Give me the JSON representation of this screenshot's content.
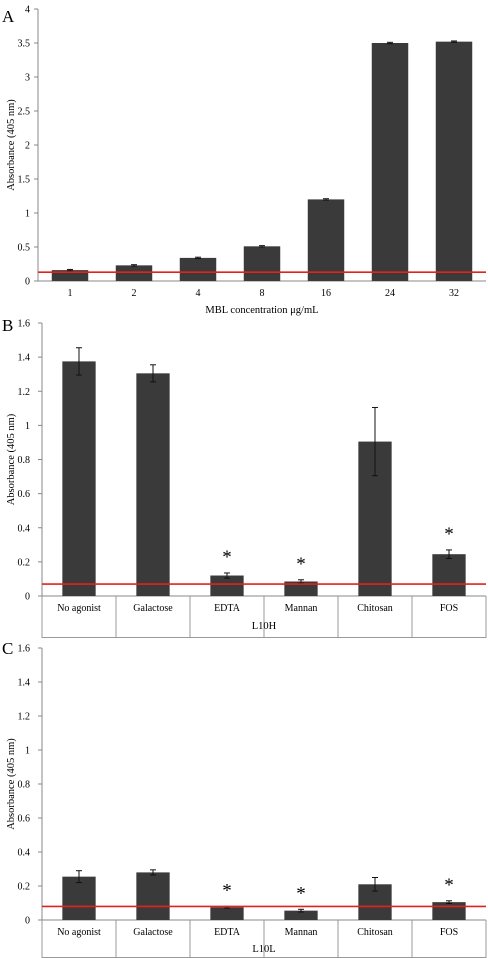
{
  "chart_data": [
    {
      "panel": "A",
      "type": "bar",
      "ylabel": "Absorbance (405 nm)",
      "xlabel": "MBL concentration μg/mL",
      "ylim": [
        0,
        4
      ],
      "yticks": [
        0,
        0.5,
        1,
        1.5,
        2,
        2.5,
        3,
        3.5,
        4
      ],
      "categories": [
        "1",
        "2",
        "4",
        "8",
        "16",
        "24",
        "32"
      ],
      "values": [
        0.16,
        0.23,
        0.34,
        0.51,
        1.2,
        3.5,
        3.52
      ],
      "errors": [
        0.01,
        0.01,
        0.01,
        0.01,
        0.01,
        0.01,
        0.01
      ],
      "significance": [
        "",
        "",
        "",
        "",
        "",
        "",
        ""
      ],
      "baseline": 0.13,
      "baseline_color": "#e2231a",
      "bar_color": "#3a3a3a"
    },
    {
      "panel": "B",
      "type": "bar",
      "ylabel": "Absorbance (405 nm)",
      "xlabel": "L10H",
      "ylim": [
        0,
        1.6
      ],
      "yticks": [
        0,
        0.2,
        0.4,
        0.6,
        0.8,
        1,
        1.2,
        1.4,
        1.6
      ],
      "categories": [
        "No agonist",
        "Galactose",
        "EDTA",
        "Mannan",
        "Chitosan",
        "FOS"
      ],
      "values": [
        1.375,
        1.305,
        0.12,
        0.085,
        0.905,
        0.245
      ],
      "errors": [
        0.08,
        0.05,
        0.015,
        0.01,
        0.2,
        0.025
      ],
      "significance": [
        "",
        "",
        "*",
        "*",
        "",
        "*"
      ],
      "baseline": 0.07,
      "baseline_color": "#e2231a",
      "bar_color": "#3a3a3a"
    },
    {
      "panel": "C",
      "type": "bar",
      "ylabel": "Absorbance (405 nm)",
      "xlabel": "L10L",
      "ylim": [
        0,
        1.6
      ],
      "yticks": [
        0,
        0.2,
        0.4,
        0.6,
        0.8,
        1,
        1.2,
        1.4,
        1.6
      ],
      "categories": [
        "No agonist",
        "Galactose",
        "EDTA",
        "Mannan",
        "Chitosan",
        "FOS"
      ],
      "values": [
        0.255,
        0.28,
        0.075,
        0.055,
        0.21,
        0.105
      ],
      "errors": [
        0.035,
        0.015,
        0.005,
        0.008,
        0.04,
        0.008
      ],
      "significance": [
        "",
        "",
        "*",
        "*",
        "",
        "*"
      ],
      "baseline": 0.08,
      "baseline_color": "#e2231a",
      "bar_color": "#3a3a3a"
    }
  ]
}
